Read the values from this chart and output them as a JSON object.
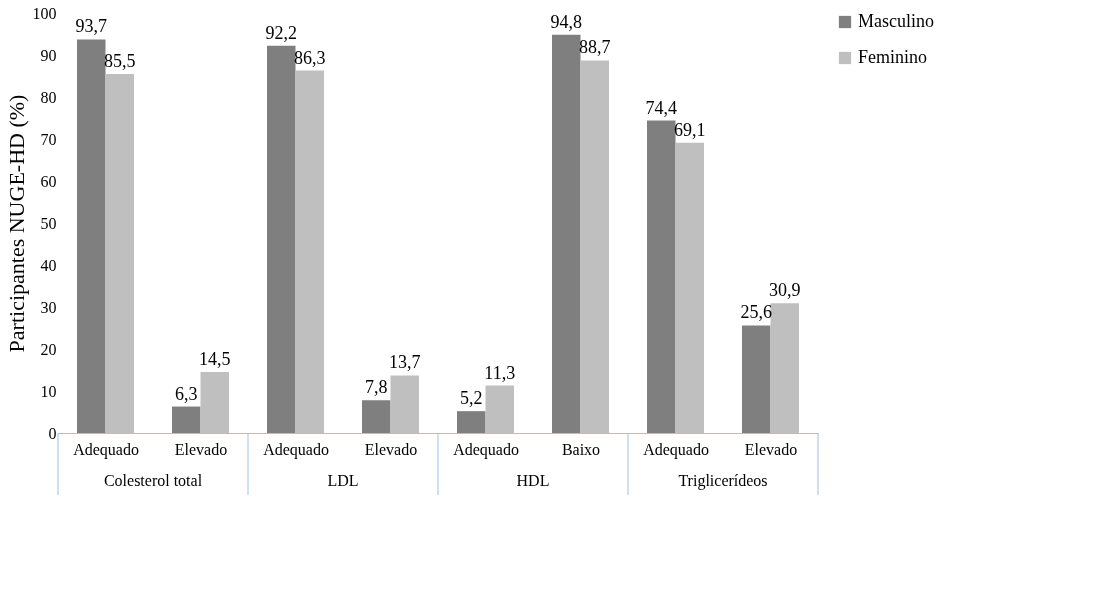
{
  "chart_data": {
    "type": "bar",
    "ylabel": "Participantes NUGE-HD (%)",
    "categories": [
      "Adequado",
      "Elevado",
      "Adequado",
      "Elevado",
      "Adequado",
      "Baixo",
      "Adequado",
      "Elevado"
    ],
    "annotations": [
      "Colesterol total",
      "LDL",
      "HDL",
      "Triglicerídeos"
    ],
    "series": [
      {
        "name": "Masculino",
        "color": "#7f7f7f",
        "values": [
          93.7,
          6.3,
          92.2,
          7.8,
          5.2,
          94.8,
          74.4,
          25.6
        ],
        "value_labels": [
          "93,7",
          "6,3",
          "92,2",
          "7,8",
          "5,2",
          "94,8",
          "74,4",
          "25,6"
        ]
      },
      {
        "name": "Feminino",
        "color": "#bfbfbf",
        "values": [
          85.5,
          14.5,
          86.3,
          13.7,
          11.3,
          88.7,
          69.1,
          30.9
        ],
        "value_labels": [
          "85,5",
          "14,5",
          "86,3",
          "13,7",
          "11,3",
          "88,7",
          "69,1",
          "30,9"
        ]
      }
    ],
    "ylim": [
      0,
      100
    ],
    "yticks": [
      0,
      10,
      20,
      30,
      40,
      50,
      60,
      70,
      80,
      90,
      100
    ],
    "grid": false,
    "legend": "right"
  }
}
